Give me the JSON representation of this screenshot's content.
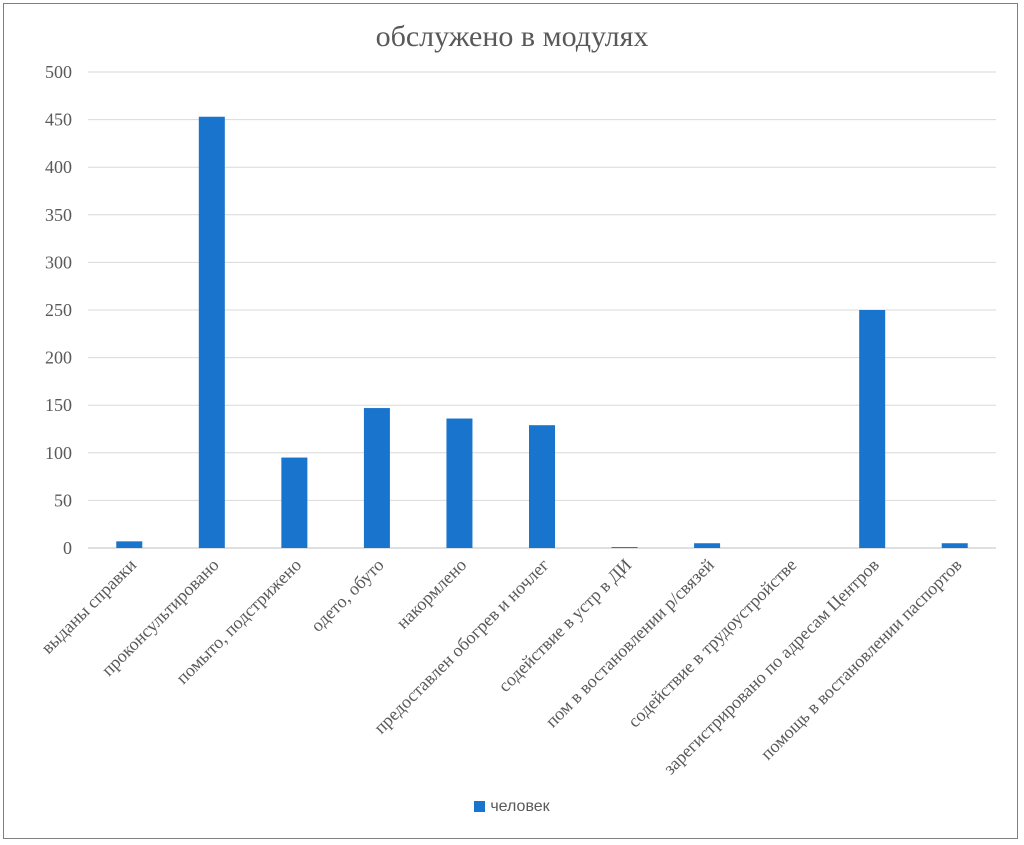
{
  "chart_data": {
    "type": "bar",
    "title": "обслужено в модулях",
    "categories": [
      "выданы справки",
      "проконсультировано",
      "помыто, подстрижено",
      "одето, обуто",
      "накормлено",
      "предоставлен обогрев и ночлег",
      "содействие в устр в ДИ",
      "пом в востановлении р/связей",
      "содействие в трудоустройстве",
      "зарегистрировано по адресам Центров",
      "помощь в востановлении паспортов"
    ],
    "series": [
      {
        "name": "человек",
        "values": [
          7,
          453,
          95,
          147,
          136,
          129,
          1,
          5,
          0,
          250,
          5
        ]
      }
    ],
    "ylim": [
      0,
      500
    ],
    "yticks": [
      0,
      50,
      100,
      150,
      200,
      250,
      300,
      350,
      400,
      450,
      500
    ],
    "grid": true,
    "legend": "bottom",
    "color": "#1874cd"
  }
}
